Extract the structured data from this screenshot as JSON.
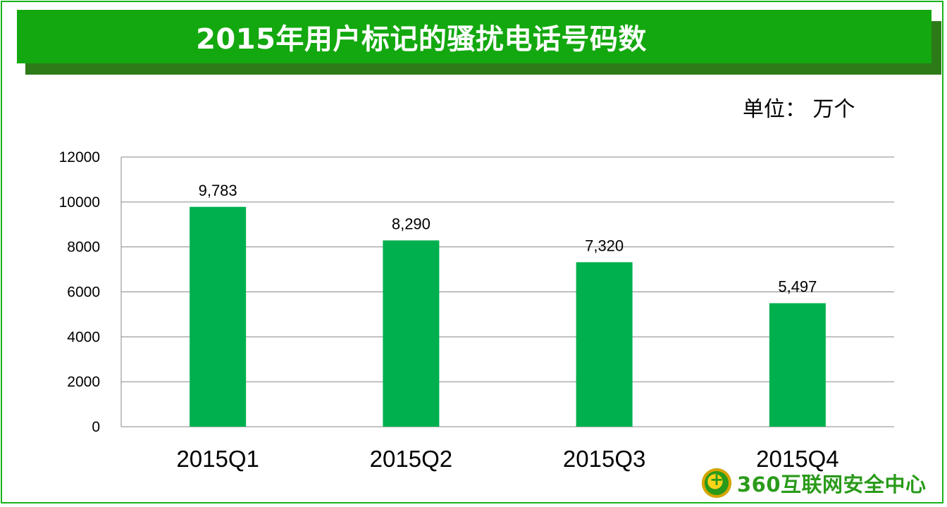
{
  "banner": {
    "title": "2015年用户标记的骚扰电话号码数"
  },
  "unit_label": "单位： 万个",
  "colors": {
    "banner": "#13a80f",
    "bar": "#00b04f",
    "grid": "#878787",
    "frame": "#19b21b"
  },
  "logo": {
    "icon": "shield-emblem-icon",
    "text": "360互联网安全中心"
  },
  "chart_data": {
    "type": "bar",
    "title": "2015年用户标记的骚扰电话号码数",
    "xlabel": "",
    "ylabel": "",
    "unit": "万个",
    "categories": [
      "2015Q1",
      "2015Q2",
      "2015Q3",
      "2015Q4"
    ],
    "values": [
      9783,
      8290,
      7320,
      5497
    ],
    "value_labels": [
      "9,783",
      "8,290",
      "7,320",
      "5,497"
    ],
    "ylim": [
      0,
      12000
    ],
    "yticks": [
      0,
      2000,
      4000,
      6000,
      8000,
      10000,
      12000
    ],
    "ytick_labels": [
      "0",
      "2000",
      "4000",
      "6000",
      "8000",
      "10000",
      "12000"
    ],
    "grid": true,
    "legend": "none"
  }
}
